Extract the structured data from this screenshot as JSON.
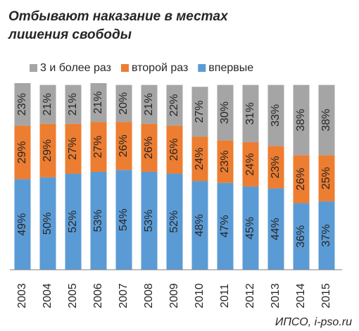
{
  "chart_data": {
    "type": "stacked_bar",
    "title": [
      "Отбывают наказание в местах",
      "лишения свободы"
    ],
    "categories": [
      "2003",
      "2004",
      "2005",
      "2006",
      "2007",
      "2008",
      "2009",
      "2010",
      "2011",
      "2012",
      "2013",
      "2014",
      "2015"
    ],
    "series": [
      {
        "name": "впервые",
        "color": "#5b9bd5",
        "values": [
          49,
          50,
          52,
          53,
          54,
          53,
          52,
          48,
          47,
          45,
          44,
          36,
          37
        ],
        "value_labels": [
          "49%",
          "50%",
          "52%",
          "53%",
          "54%",
          "53%",
          "52%",
          "48%",
          "47%",
          "45%",
          "44%",
          "36%",
          "37%"
        ]
      },
      {
        "name": "второй раз",
        "color": "#ed7d31",
        "values": [
          29,
          29,
          27,
          27,
          26,
          26,
          26,
          24,
          23,
          24,
          23,
          26,
          25
        ],
        "value_labels": [
          "29%",
          "29%",
          "27%",
          "27%",
          "26%",
          "26%",
          "26%",
          "24%",
          "23%",
          "24%",
          "23%",
          "26%",
          "25%"
        ]
      },
      {
        "name": "3 и более раз",
        "color": "#a5a5a5",
        "values": [
          23,
          21,
          21,
          21,
          20,
          21,
          22,
          27,
          30,
          31,
          33,
          38,
          38
        ],
        "value_labels": [
          "23%",
          "21%",
          "21%",
          "21%",
          "20%",
          "21%",
          "22%",
          "27%",
          "30%",
          "31%",
          "33%",
          "38%",
          "38%"
        ]
      }
    ],
    "source": "ИПСО, i-pso.ru"
  }
}
